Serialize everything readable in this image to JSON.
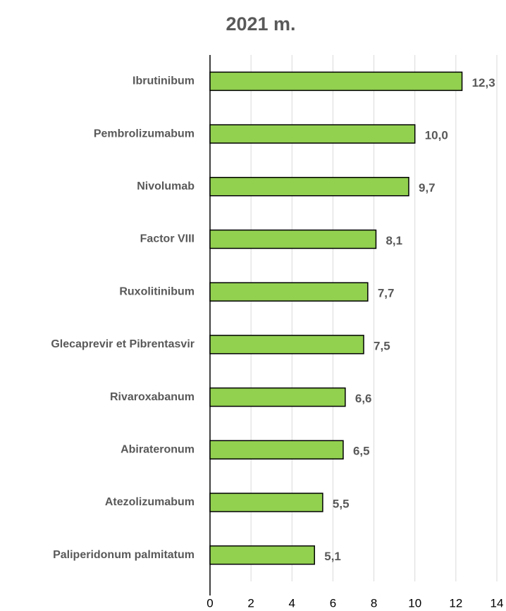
{
  "chart_data": {
    "type": "bar",
    "orientation": "horizontal",
    "title": "2021 m.",
    "categories": [
      "Ibrutinibum",
      "Pembrolizumabum",
      "Nivolumab",
      "Factor VIII",
      "Ruxolitinibum",
      "Glecaprevir et Pibrentasvir",
      "Rivaroxabanum",
      "Abirateronum",
      "Atezolizumabum",
      "Paliperidonum palmitatum"
    ],
    "values": [
      12.3,
      10.0,
      9.7,
      8.1,
      7.7,
      7.5,
      6.6,
      6.5,
      5.5,
      5.1
    ],
    "value_labels": [
      "12,3",
      "10,0",
      "9,7",
      "8,1",
      "7,7",
      "7,5",
      "6,6",
      "6,5",
      "5,5",
      "5,1"
    ],
    "color": "#92d050",
    "xlim": [
      0,
      14
    ],
    "xticks": [
      0,
      2,
      4,
      6,
      8,
      10,
      12,
      14
    ],
    "grid": true
  }
}
